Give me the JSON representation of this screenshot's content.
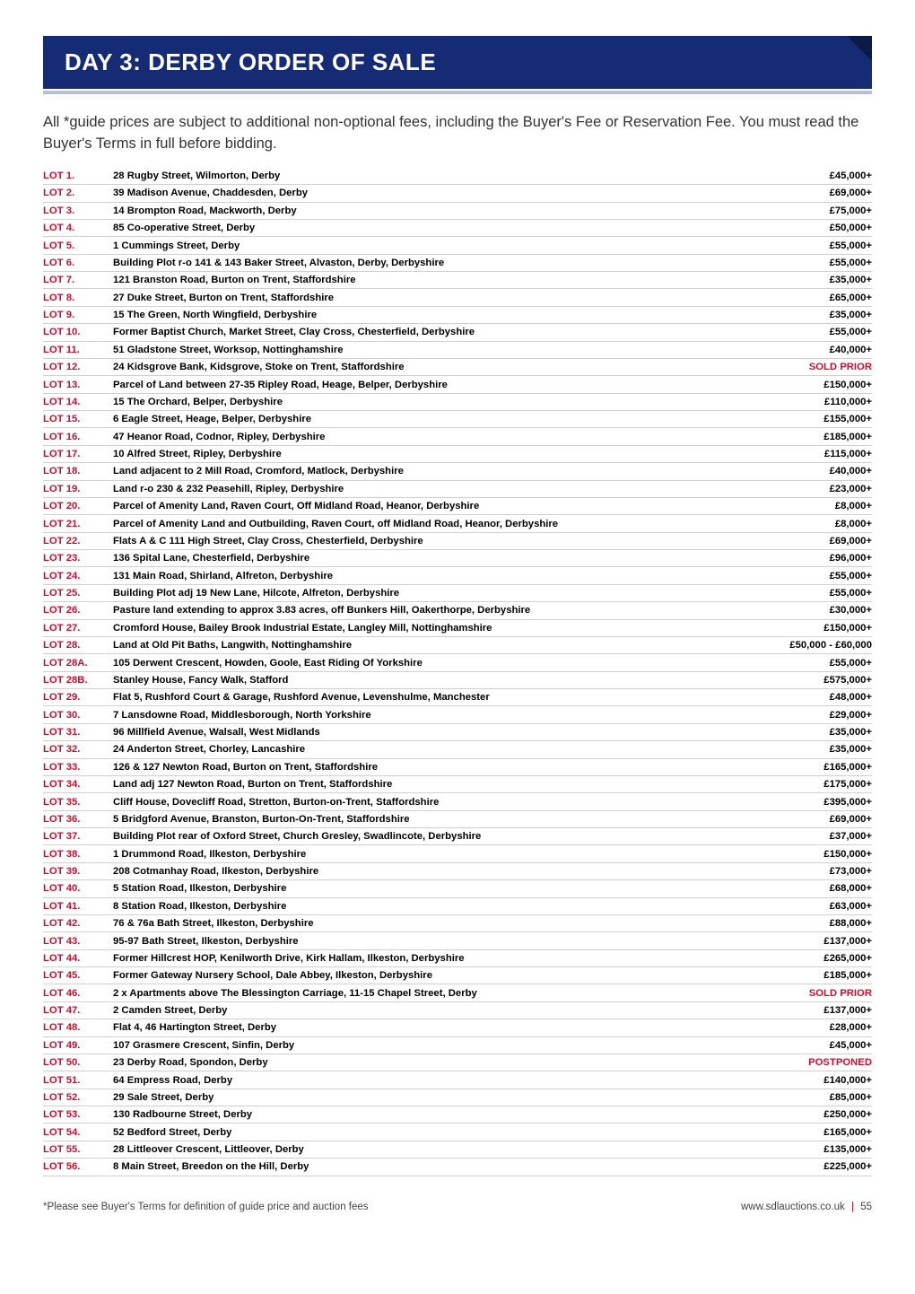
{
  "banner": {
    "title": "DAY 3: DERBY ORDER OF SALE"
  },
  "intro": "All *guide prices are subject to additional non-optional fees, including the Buyer's Fee or Reservation Fee. You must read the Buyer's Terms in full before bidding.",
  "colors": {
    "banner_bg": "#162b75",
    "banner_text": "#ffffff",
    "corner": "#0c1a4a",
    "underline": "#b8bfd6",
    "lot_red": "#c8102e",
    "row_border": "#d0d0d0",
    "price_red": "#c8102e",
    "price_black": "#000000"
  },
  "lots": [
    {
      "lot": "LOT 1.",
      "desc": "28 Rugby Street, Wilmorton, Derby",
      "price": "£45,000+",
      "pc": "#000000"
    },
    {
      "lot": "LOT 2.",
      "desc": "39 Madison Avenue, Chaddesden, Derby",
      "price": "£69,000+",
      "pc": "#000000"
    },
    {
      "lot": "LOT 3.",
      "desc": "14 Brompton Road, Mackworth, Derby",
      "price": "£75,000+",
      "pc": "#000000"
    },
    {
      "lot": "LOT 4.",
      "desc": "85 Co-operative Street, Derby",
      "price": "£50,000+",
      "pc": "#000000"
    },
    {
      "lot": "LOT 5.",
      "desc": "1 Cummings Street, Derby",
      "price": "£55,000+",
      "pc": "#000000"
    },
    {
      "lot": "LOT 6.",
      "desc": "Building Plot r-o 141 & 143 Baker Street, Alvaston, Derby, Derbyshire",
      "price": "£55,000+",
      "pc": "#000000"
    },
    {
      "lot": "LOT 7.",
      "desc": "121 Branston Road, Burton on Trent, Staffordshire",
      "price": "£35,000+",
      "pc": "#000000"
    },
    {
      "lot": "LOT 8.",
      "desc": "27 Duke Street, Burton on Trent, Staffordshire",
      "price": "£65,000+",
      "pc": "#000000"
    },
    {
      "lot": "LOT 9.",
      "desc": "15 The Green, North Wingfield, Derbyshire",
      "price": "£35,000+",
      "pc": "#000000"
    },
    {
      "lot": "LOT 10.",
      "desc": "Former Baptist Church, Market Street, Clay Cross, Chesterfield, Derbyshire",
      "price": "£55,000+",
      "pc": "#000000"
    },
    {
      "lot": "LOT 11.",
      "desc": "51 Gladstone Street, Worksop, Nottinghamshire",
      "price": "£40,000+",
      "pc": "#000000"
    },
    {
      "lot": "LOT 12.",
      "desc": "24 Kidsgrove Bank, Kidsgrove, Stoke on Trent, Staffordshire",
      "price": "SOLD PRIOR",
      "pc": "#c8102e"
    },
    {
      "lot": "LOT 13.",
      "desc": "Parcel of Land between 27-35 Ripley Road, Heage, Belper, Derbyshire",
      "price": "£150,000+",
      "pc": "#000000"
    },
    {
      "lot": "LOT 14.",
      "desc": "15 The Orchard, Belper, Derbyshire",
      "price": "£110,000+",
      "pc": "#000000"
    },
    {
      "lot": "LOT 15.",
      "desc": "6 Eagle Street, Heage, Belper, Derbyshire",
      "price": "£155,000+",
      "pc": "#000000"
    },
    {
      "lot": "LOT 16.",
      "desc": "47 Heanor Road, Codnor, Ripley, Derbyshire",
      "price": "£185,000+",
      "pc": "#000000"
    },
    {
      "lot": "LOT 17.",
      "desc": "10 Alfred Street, Ripley, Derbyshire",
      "price": "£115,000+",
      "pc": "#000000"
    },
    {
      "lot": "LOT 18.",
      "desc": "Land adjacent to 2 Mill Road, Cromford, Matlock, Derbyshire",
      "price": "£40,000+",
      "pc": "#000000"
    },
    {
      "lot": "LOT 19.",
      "desc": "Land r-o 230 & 232 Peasehill, Ripley, Derbyshire",
      "price": "£23,000+",
      "pc": "#000000"
    },
    {
      "lot": "LOT 20.",
      "desc": "Parcel of Amenity Land, Raven Court, Off Midland Road, Heanor, Derbyshire",
      "price": "£8,000+",
      "pc": "#000000"
    },
    {
      "lot": "LOT 21.",
      "desc": "Parcel of Amenity Land and Outbuilding, Raven Court, off Midland Road, Heanor, Derbyshire",
      "price": "£8,000+",
      "pc": "#000000"
    },
    {
      "lot": "LOT 22.",
      "desc": "Flats A & C 111 High Street, Clay Cross, Chesterfield, Derbyshire",
      "price": "£69,000+",
      "pc": "#000000"
    },
    {
      "lot": "LOT 23.",
      "desc": "136 Spital Lane, Chesterfield, Derbyshire",
      "price": "£96,000+",
      "pc": "#000000"
    },
    {
      "lot": "LOT 24.",
      "desc": "131 Main Road, Shirland, Alfreton, Derbyshire",
      "price": "£55,000+",
      "pc": "#000000"
    },
    {
      "lot": "LOT 25.",
      "desc": "Building Plot adj 19 New Lane, Hilcote, Alfreton, Derbyshire",
      "price": "£55,000+",
      "pc": "#000000"
    },
    {
      "lot": "LOT 26.",
      "desc": "Pasture land extending to approx 3.83 acres, off Bunkers Hill, Oakerthorpe, Derbyshire",
      "price": "£30,000+",
      "pc": "#000000"
    },
    {
      "lot": "LOT 27.",
      "desc": "Cromford House, Bailey Brook Industrial Estate, Langley Mill, Nottinghamshire",
      "price": "£150,000+",
      "pc": "#000000"
    },
    {
      "lot": "LOT 28.",
      "desc": "Land at Old Pit Baths, Langwith, Nottinghamshire",
      "price": "£50,000 - £60,000",
      "pc": "#000000"
    },
    {
      "lot": "LOT 28A.",
      "desc": "105 Derwent Crescent, Howden, Goole, East Riding Of Yorkshire",
      "price": "£55,000+",
      "pc": "#000000"
    },
    {
      "lot": "LOT 28B.",
      "desc": "Stanley House, Fancy Walk, Stafford",
      "price": "£575,000+",
      "pc": "#000000"
    },
    {
      "lot": "LOT 29.",
      "desc": "Flat 5, Rushford Court & Garage, Rushford Avenue, Levenshulme, Manchester",
      "price": "£48,000+",
      "pc": "#000000"
    },
    {
      "lot": "LOT 30.",
      "desc": "7 Lansdowne Road, Middlesborough, North Yorkshire",
      "price": "£29,000+",
      "pc": "#000000"
    },
    {
      "lot": "LOT 31.",
      "desc": "96 Millfield Avenue, Walsall, West Midlands",
      "price": "£35,000+",
      "pc": "#000000"
    },
    {
      "lot": "LOT 32.",
      "desc": "24 Anderton Street, Chorley, Lancashire",
      "price": "£35,000+",
      "pc": "#000000"
    },
    {
      "lot": "LOT 33.",
      "desc": "126 & 127 Newton Road, Burton on Trent, Staffordshire",
      "price": "£165,000+",
      "pc": "#000000"
    },
    {
      "lot": "LOT 34.",
      "desc": "Land adj 127 Newton Road, Burton on Trent, Staffordshire",
      "price": "£175,000+",
      "pc": "#000000"
    },
    {
      "lot": "LOT 35.",
      "desc": "Cliff House, Dovecliff Road, Stretton, Burton-on-Trent, Staffordshire",
      "price": "£395,000+",
      "pc": "#000000"
    },
    {
      "lot": "LOT 36.",
      "desc": "5 Bridgford Avenue, Branston, Burton-On-Trent, Staffordshire",
      "price": "£69,000+",
      "pc": "#000000"
    },
    {
      "lot": "LOT 37.",
      "desc": "Building Plot rear of Oxford Street, Church Gresley, Swadlincote, Derbyshire",
      "price": "£37,000+",
      "pc": "#000000"
    },
    {
      "lot": "LOT 38.",
      "desc": "1 Drummond Road, Ilkeston, Derbyshire",
      "price": "£150,000+",
      "pc": "#000000"
    },
    {
      "lot": "LOT 39.",
      "desc": "208 Cotmanhay Road, Ilkeston, Derbyshire",
      "price": "£73,000+",
      "pc": "#000000"
    },
    {
      "lot": "LOT 40.",
      "desc": "5 Station Road, Ilkeston, Derbyshire",
      "price": "£68,000+",
      "pc": "#000000"
    },
    {
      "lot": "LOT 41.",
      "desc": "8 Station Road, Ilkeston, Derbyshire",
      "price": "£63,000+",
      "pc": "#000000"
    },
    {
      "lot": "LOT 42.",
      "desc": "76 & 76a Bath Street, Ilkeston, Derbyshire",
      "price": "£88,000+",
      "pc": "#000000"
    },
    {
      "lot": "LOT 43.",
      "desc": "95-97 Bath Street, Ilkeston, Derbyshire",
      "price": "£137,000+",
      "pc": "#000000"
    },
    {
      "lot": "LOT 44.",
      "desc": "Former Hillcrest HOP, Kenilworth Drive, Kirk Hallam, Ilkeston, Derbyshire",
      "price": "£265,000+",
      "pc": "#000000"
    },
    {
      "lot": "LOT 45.",
      "desc": "Former Gateway Nursery School, Dale Abbey, Ilkeston, Derbyshire",
      "price": "£185,000+",
      "pc": "#000000"
    },
    {
      "lot": "LOT 46.",
      "desc": "2 x Apartments above The Blessington Carriage, 11-15 Chapel Street, Derby",
      "price": "SOLD PRIOR",
      "pc": "#c8102e"
    },
    {
      "lot": "LOT 47.",
      "desc": "2 Camden Street, Derby",
      "price": "£137,000+",
      "pc": "#000000"
    },
    {
      "lot": "LOT 48.",
      "desc": "Flat 4, 46 Hartington Street, Derby",
      "price": "£28,000+",
      "pc": "#000000"
    },
    {
      "lot": "LOT 49.",
      "desc": "107 Grasmere Crescent, Sinfin, Derby",
      "price": "£45,000+",
      "pc": "#000000"
    },
    {
      "lot": "LOT 50.",
      "desc": "23 Derby Road, Spondon, Derby",
      "price": "POSTPONED",
      "pc": "#c8102e"
    },
    {
      "lot": "LOT 51.",
      "desc": "64 Empress Road, Derby",
      "price": "£140,000+",
      "pc": "#000000"
    },
    {
      "lot": "LOT 52.",
      "desc": "29 Sale Street, Derby",
      "price": "£85,000+",
      "pc": "#000000"
    },
    {
      "lot": "LOT 53.",
      "desc": "130 Radbourne Street, Derby",
      "price": "£250,000+",
      "pc": "#000000"
    },
    {
      "lot": "LOT 54.",
      "desc": "52 Bedford Street, Derby",
      "price": "£165,000+",
      "pc": "#000000"
    },
    {
      "lot": "LOT 55.",
      "desc": "28 Littleover Crescent, Littleover, Derby",
      "price": "£135,000+",
      "pc": "#000000"
    },
    {
      "lot": "LOT 56.",
      "desc": "8 Main Street, Breedon on the Hill, Derby",
      "price": "£225,000+",
      "pc": "#000000"
    }
  ],
  "footer": {
    "left": "*Please see Buyer's Terms for definition of guide price and auction fees",
    "right_url": "www.sdlauctions.co.uk",
    "right_sep": "|",
    "right_page": "55"
  }
}
